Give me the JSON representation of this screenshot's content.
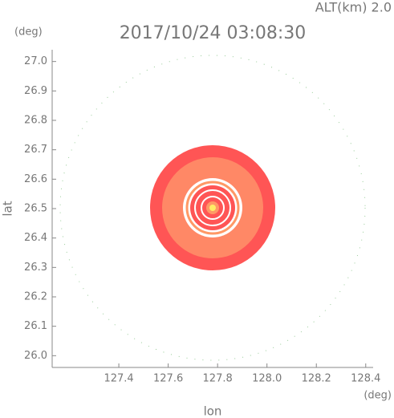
{
  "chart_data": {
    "type": "radar-ppi",
    "title": "2017/10/24 03:08:30",
    "subtitle": "ALT(km) 2.0",
    "x_label": "lon",
    "y_label": "lat",
    "x_unit": "(deg)",
    "y_unit": "(deg)",
    "xlim": [
      127.13,
      128.43
    ],
    "ylim": [
      25.96,
      27.04
    ],
    "xticks": [
      127.4,
      127.6,
      127.8,
      {
        "value": 128,
        "label": "128.0"
      },
      128.2,
      128.4
    ],
    "yticks": [
      {
        "value": 26,
        "label": "26.0"
      },
      26.1,
      26.2,
      26.3,
      26.4,
      26.5,
      26.6,
      26.7,
      26.8,
      26.9,
      {
        "value": 27,
        "label": "27.0"
      }
    ]
  }
}
